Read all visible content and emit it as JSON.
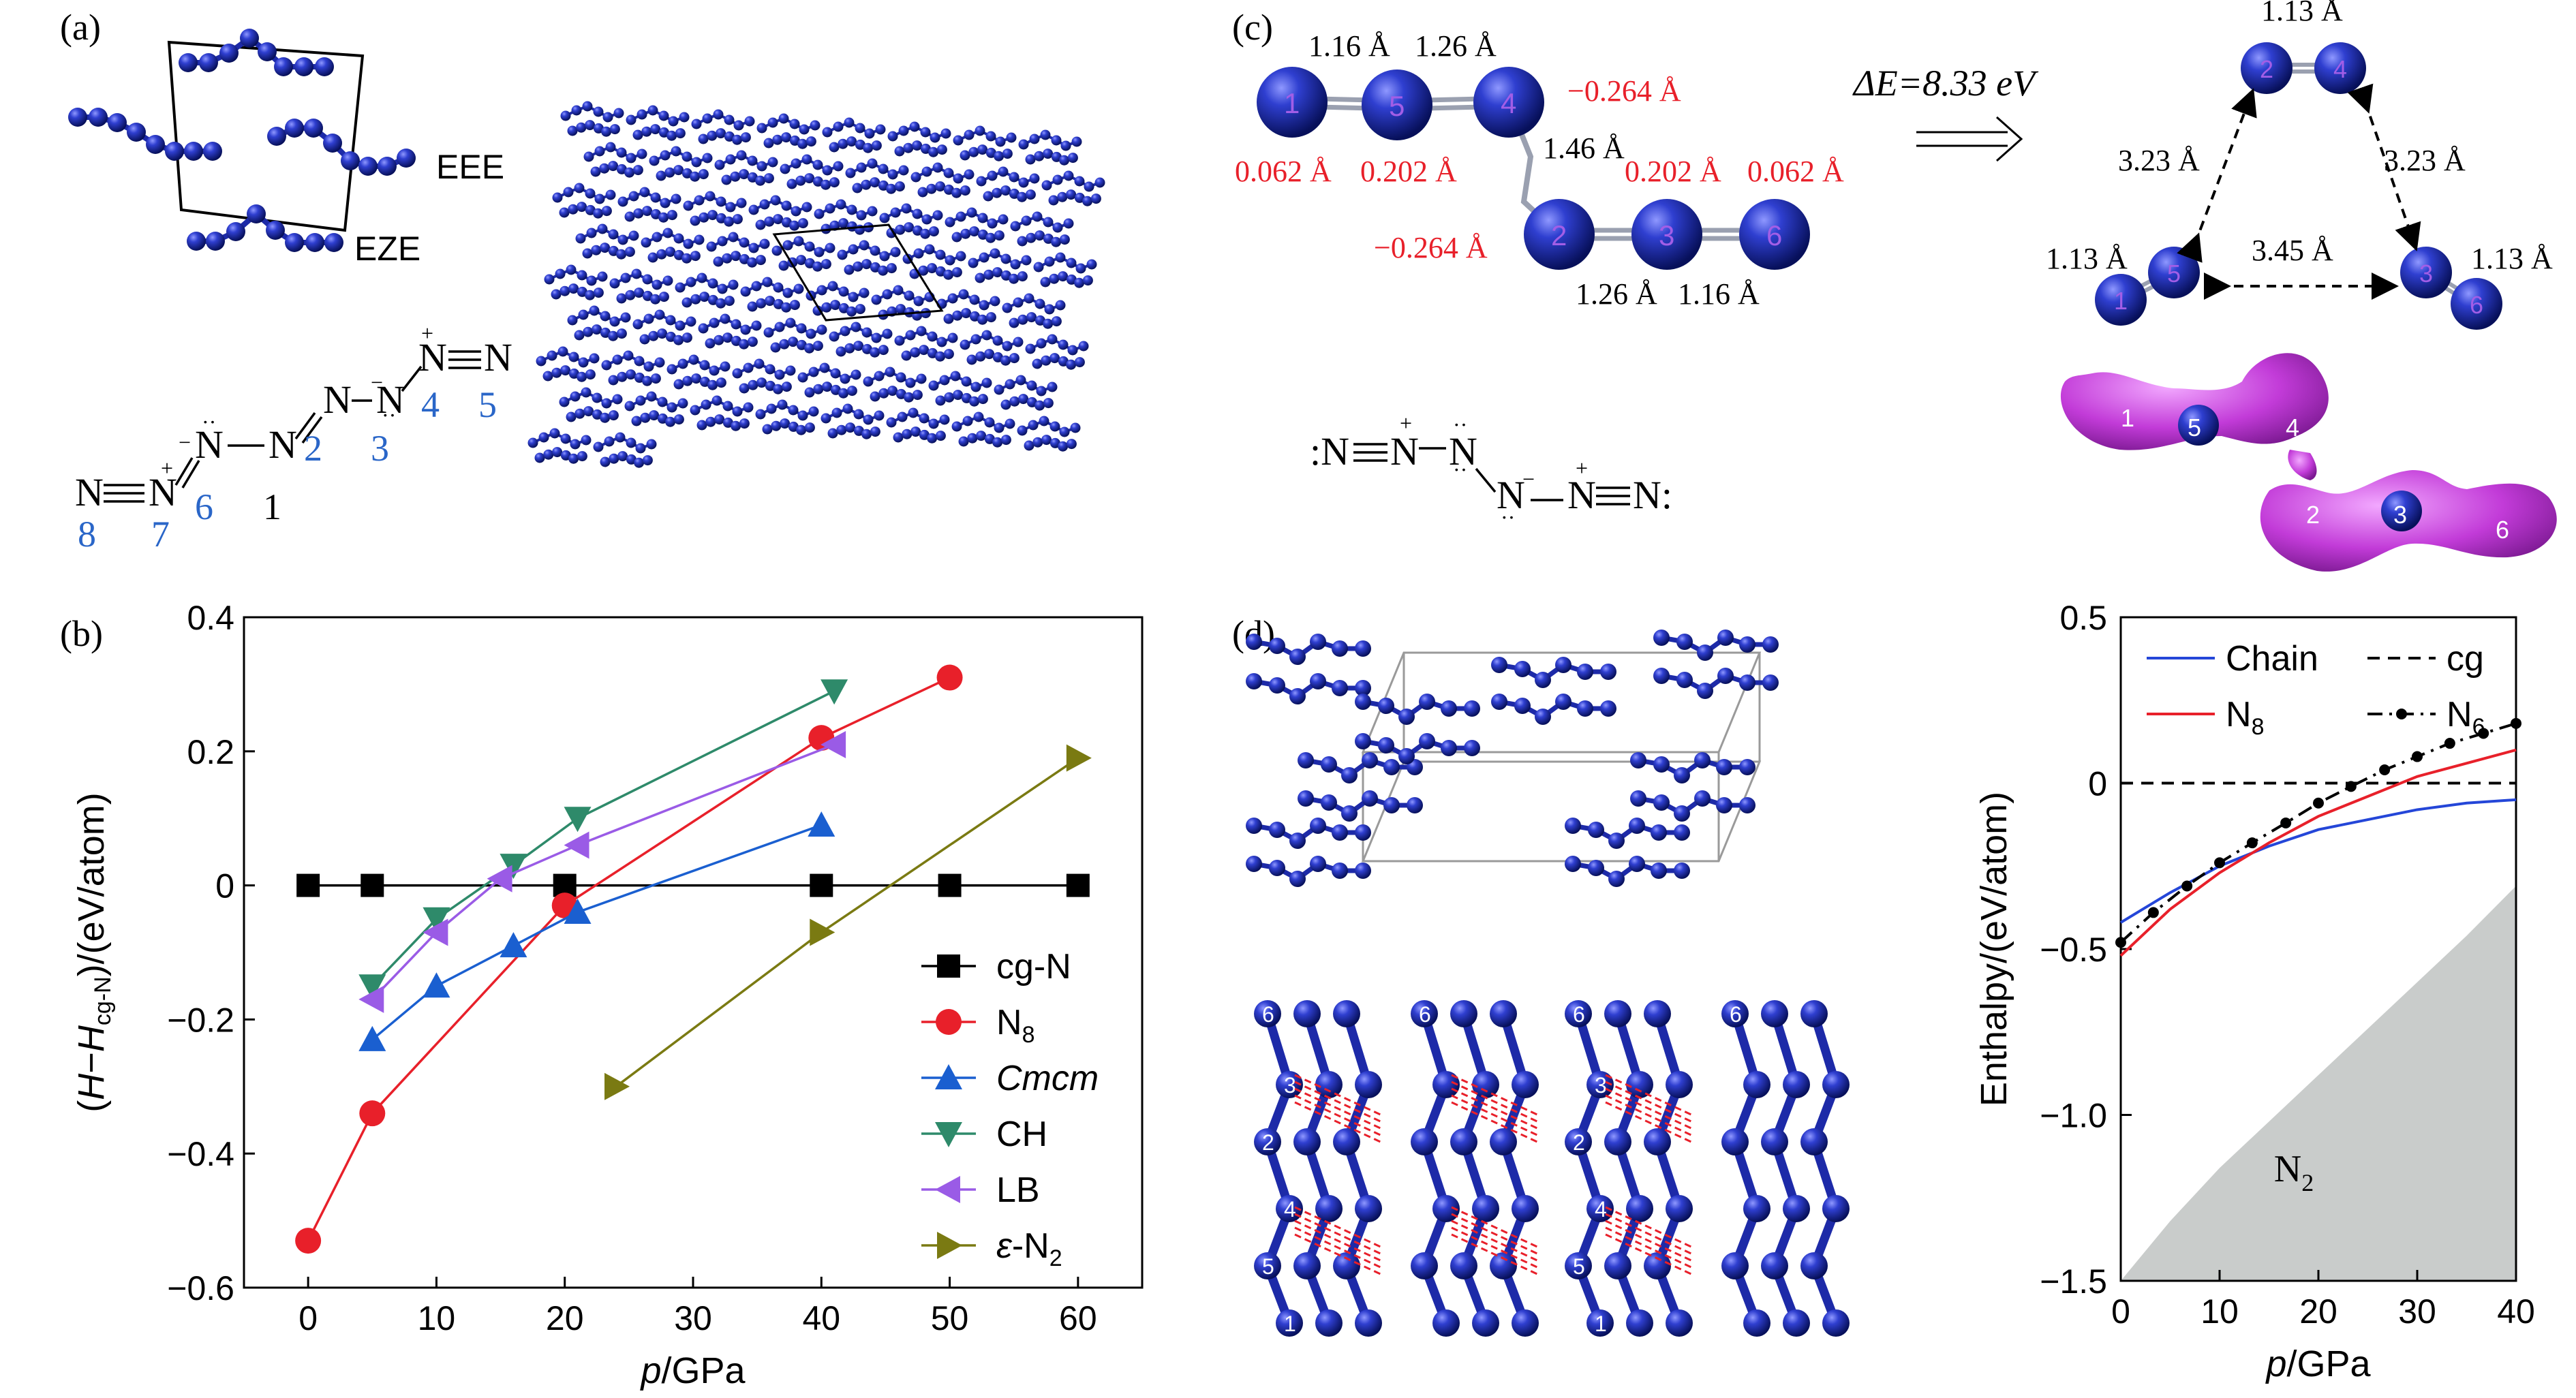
{
  "colors": {
    "atom": "#2633c0",
    "atom_dark": "#0a1270",
    "red": "#e8202a",
    "blue_label": "#2a66c8",
    "magenta": "#c23bd8",
    "gray_fill": "#c9cccb"
  },
  "panel_labels": {
    "a": "(a)",
    "b": "(b)",
    "c": "(c)",
    "d": "(d)"
  },
  "panel_a": {
    "eee": "EEE",
    "eze": "EZE",
    "numbers": [
      "1",
      "2",
      "3",
      "4",
      "5",
      "6",
      "7",
      "8"
    ]
  },
  "panel_c": {
    "bond_116_l": "1.16 Å",
    "bond_126_l": "1.26 Å",
    "bond_146": "1.46 Å",
    "bond_126_r": "1.26 Å",
    "bond_116_r": "1.16 Å",
    "charge_1": "0.062 Å",
    "charge_5": "0.202 Å",
    "charge_4": "−0.264 Å",
    "charge_2": "−0.264 Å",
    "charge_3": "0.202 Å",
    "charge_6": "0.062 Å",
    "atom_labels": [
      "1",
      "5",
      "4",
      "2",
      "3",
      "6"
    ],
    "delta_e": "ΔE=8.33 eV",
    "prod_top": "1.13 Å",
    "prod_left_edge": "3.23 Å",
    "prod_right_edge": "3.23 Å",
    "prod_bottom_edge": "3.45 Å",
    "prod_left": "1.13 Å",
    "prod_right": "1.13 Å",
    "prod_labels": [
      "2",
      "4",
      "1",
      "5",
      "3",
      "6"
    ],
    "density_labels": [
      "1",
      "5",
      "4",
      "2",
      "3",
      "6"
    ]
  },
  "panel_d": {
    "layer_labels": [
      "6",
      "3",
      "2",
      "4",
      "5",
      "1"
    ]
  },
  "chart_data": [
    {
      "type": "line",
      "xlabel": "p/GPa",
      "ylabel": "(H−H_cg-N)/(eV/atom)",
      "xlim": [
        -5,
        65
      ],
      "ylim": [
        -0.6,
        0.4
      ],
      "xticks": [
        0,
        10,
        20,
        30,
        40,
        50,
        60
      ],
      "yticks": [
        -0.6,
        -0.4,
        -0.2,
        0,
        0.2,
        0.4
      ],
      "ytick_labels": [
        "−0.6",
        "−0.4",
        "−0.2",
        "0",
        "0.2",
        "0.4"
      ],
      "legend_position": "bottom-right",
      "series": [
        {
          "name": "cg-N",
          "color": "#000000",
          "marker": "square",
          "x": [
            0,
            5,
            20,
            40,
            50,
            60
          ],
          "y": [
            0,
            0,
            0,
            0,
            0,
            0
          ]
        },
        {
          "name": "N8",
          "color": "#e8202a",
          "marker": "circle",
          "x": [
            0,
            5,
            20,
            40,
            50
          ],
          "y": [
            -0.53,
            -0.34,
            -0.03,
            0.22,
            0.31
          ]
        },
        {
          "name": "Cmcm",
          "color": "#1a5fd0",
          "marker": "triangle-up",
          "x": [
            5,
            10,
            16,
            21,
            40
          ],
          "y": [
            -0.23,
            -0.15,
            -0.09,
            -0.04,
            0.09
          ]
        },
        {
          "name": "CH",
          "color": "#2e8a6a",
          "marker": "triangle-down",
          "x": [
            5,
            10,
            16,
            21,
            41
          ],
          "y": [
            -0.15,
            -0.05,
            0.03,
            0.1,
            0.29
          ]
        },
        {
          "name": "LB",
          "color": "#9a5be6",
          "marker": "triangle-left",
          "x": [
            5,
            10,
            15,
            21,
            41
          ],
          "y": [
            -0.17,
            -0.07,
            0.01,
            0.06,
            0.21
          ]
        },
        {
          "name": "ε-N2",
          "color": "#7a7a12",
          "marker": "triangle-right",
          "x": [
            24,
            40,
            60
          ],
          "y": [
            -0.3,
            -0.07,
            0.19
          ]
        }
      ]
    },
    {
      "type": "line",
      "xlabel": "p/GPa",
      "ylabel": "Enthalpy/(eV/atom)",
      "xlim": [
        0,
        40
      ],
      "ylim": [
        -1.5,
        0.5
      ],
      "xticks": [
        0,
        10,
        20,
        30,
        40
      ],
      "yticks": [
        -1.5,
        -1.0,
        -0.5,
        0,
        0.5
      ],
      "ytick_labels": [
        "−1.5",
        "−1.0",
        "−0.5",
        "0",
        "0.5"
      ],
      "legend_position": "top",
      "region_label": "N2",
      "series": [
        {
          "name": "Chain",
          "color": "#2446d8",
          "style": "solid",
          "x": [
            0,
            5,
            10,
            15,
            20,
            25,
            30,
            35,
            40
          ],
          "y": [
            -0.42,
            -0.33,
            -0.25,
            -0.19,
            -0.14,
            -0.11,
            -0.08,
            -0.06,
            -0.05
          ]
        },
        {
          "name": "cg",
          "color": "#000000",
          "style": "dashed",
          "x": [
            0,
            40
          ],
          "y": [
            0,
            0
          ]
        },
        {
          "name": "N8",
          "color": "#e8202a",
          "style": "solid",
          "x": [
            0,
            5,
            10,
            15,
            20,
            25,
            30,
            35,
            40
          ],
          "y": [
            -0.52,
            -0.38,
            -0.27,
            -0.18,
            -0.1,
            -0.04,
            0.02,
            0.06,
            0.1
          ]
        },
        {
          "name": "N6",
          "color": "#000000",
          "style": "dash-dot-marker",
          "x": [
            0,
            3.3,
            6.7,
            10,
            13.3,
            16.7,
            20,
            23.3,
            26.7,
            30,
            33.3,
            36.7,
            40
          ],
          "y": [
            -0.48,
            -0.39,
            -0.31,
            -0.24,
            -0.18,
            -0.12,
            -0.06,
            -0.01,
            0.04,
            0.08,
            0.12,
            0.15,
            0.18
          ]
        },
        {
          "name": "N2",
          "color": "#c9cccb",
          "style": "filled-region",
          "x": [
            0,
            5,
            10,
            15,
            20,
            25,
            30,
            35,
            40
          ],
          "y": [
            -1.5,
            -1.32,
            -1.16,
            -1.02,
            -0.88,
            -0.74,
            -0.6,
            -0.46,
            -0.31
          ]
        }
      ]
    }
  ]
}
